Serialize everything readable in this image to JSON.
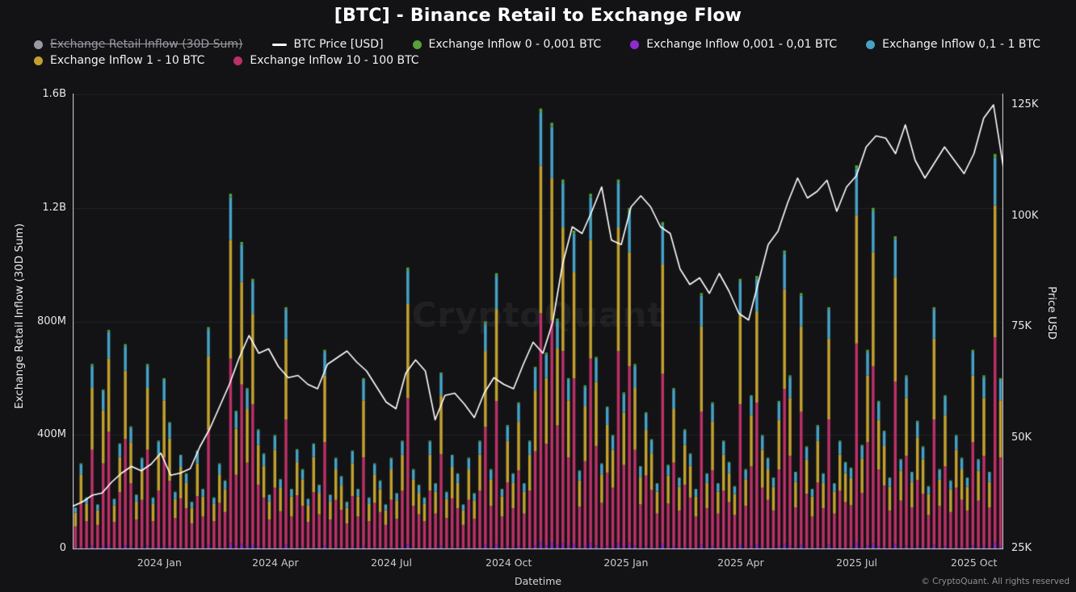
{
  "title": "[BTC] - Binance Retail to Exchange Flow",
  "watermark": "CryptoQuant",
  "footer": "© CryptoQuant. All rights reserved",
  "legend": {
    "rows": [
      [
        {
          "label": "Exchange Retail Inflow (30D Sum)",
          "color": "#9a9aa2",
          "marker": "dot",
          "disabled": true
        },
        {
          "label": "BTC Price [USD]",
          "color": "#ffffff",
          "marker": "line",
          "disabled": false
        },
        {
          "label": "Exchange Inflow 0 - 0,001 BTC",
          "color": "#55a23c",
          "marker": "dot",
          "disabled": false
        },
        {
          "label": "Exchange Inflow 0,001 - 0,01 BTC",
          "color": "#8e2bd0",
          "marker": "dot",
          "disabled": false
        },
        {
          "label": "Exchange Inflow 0,1 - 1 BTC",
          "color": "#46a2c6",
          "marker": "dot",
          "disabled": false
        }
      ],
      [
        {
          "label": "Exchange Inflow 1 - 10 BTC",
          "color": "#c1a02f",
          "marker": "dot",
          "disabled": false
        },
        {
          "label": "Exchange Inflow 10 - 100 BTC",
          "color": "#bb3066",
          "marker": "dot",
          "disabled": false
        }
      ]
    ]
  },
  "chart_data": {
    "type": "stacked-bar+line",
    "title": "[BTC] - Binance Retail to Exchange Flow",
    "xlabel": "Datetime",
    "ylabel_left": "Exchange Retail Inflow (30D Sum)",
    "ylabel_right": "Price USD",
    "grid": "faint-horizontal",
    "legend_position": "top-left",
    "x_ticks": [
      {
        "label": "2024 Jan",
        "f": 0.0932
      },
      {
        "label": "2024 Apr",
        "f": 0.2178
      },
      {
        "label": "2024 Jul",
        "f": 0.3425
      },
      {
        "label": "2024 Oct",
        "f": 0.4685
      },
      {
        "label": "2025 Jan",
        "f": 0.5945
      },
      {
        "label": "2025 Apr",
        "f": 0.7178
      },
      {
        "label": "2025 Jul",
        "f": 0.8425
      },
      {
        "label": "2025 Oct",
        "f": 0.9685
      }
    ],
    "left_axis": {
      "unit": "USD",
      "range_musd": [
        0,
        1600
      ],
      "ticks": [
        {
          "label": "0",
          "v": 0
        },
        {
          "label": "400M",
          "v": 400
        },
        {
          "label": "800M",
          "v": 800
        },
        {
          "label": "1.2B",
          "v": 1200
        },
        {
          "label": "1.6B",
          "v": 1600
        }
      ]
    },
    "right_axis": {
      "unit": "USD",
      "range_kusd": [
        25,
        125
      ],
      "ticks": [
        {
          "label": "25K",
          "v": 25
        },
        {
          "label": "50K",
          "v": 50
        },
        {
          "label": "75K",
          "v": 75
        },
        {
          "label": "100K",
          "v": 100
        },
        {
          "label": "125K",
          "v": 125
        }
      ]
    },
    "disabled_series": [
      "Exchange Retail Inflow (30D Sum)"
    ],
    "bars": {
      "unit": "USD millions (approximate, downsampled daily totals Oct 2023 - Oct 2025)",
      "stack": [
        {
          "name": "Exchange Inflow 0,001 - 0,01 BTC",
          "color": "#8d27b8",
          "fraction": 0.015
        },
        {
          "name": "Exchange Inflow 10 - 100 BTC",
          "color": "#bb3066",
          "fraction": 0.52
        },
        {
          "name": "Exchange Inflow 1 - 10 BTC",
          "color": "#c1a02f",
          "fraction": 0.335
        },
        {
          "name": "Exchange Inflow 0,1 - 1 BTC",
          "color": "#46a2c6",
          "fraction": 0.12
        },
        {
          "name": "Exchange Inflow 0 - 0,001 BTC",
          "color": "#55a23c",
          "fraction": 0.01
        }
      ],
      "totals_musd": [
        145,
        300,
        180,
        650,
        155,
        560,
        770,
        175,
        370,
        720,
        430,
        190,
        320,
        650,
        180,
        380,
        600,
        445,
        200,
        330,
        265,
        165,
        345,
        210,
        780,
        180,
        300,
        240,
        1250,
        485,
        1080,
        565,
        950,
        420,
        335,
        190,
        400,
        245,
        850,
        210,
        350,
        280,
        175,
        370,
        225,
        700,
        190,
        320,
        255,
        165,
        345,
        210,
        600,
        180,
        300,
        240,
        155,
        320,
        195,
        380,
        990,
        280,
        225,
        180,
        380,
        230,
        620,
        200,
        330,
        265,
        155,
        320,
        195,
        380,
        800,
        280,
        970,
        210,
        435,
        265,
        515,
        230,
        380,
        640,
        1550,
        690,
        1500,
        810,
        1300,
        600,
        1120,
        275,
        575,
        1250,
        675,
        300,
        500,
        400,
        1300,
        550,
        1200,
        650,
        290,
        480,
        385,
        230,
        1150,
        295,
        565,
        250,
        420,
        335,
        210,
        900,
        265,
        515,
        230,
        380,
        305,
        220,
        950,
        280,
        540,
        960,
        400,
        320,
        250,
        520,
        1050,
        610,
        270,
        900,
        360,
        210,
        435,
        265,
        850,
        230,
        380,
        305,
        285,
        1350,
        365,
        700,
        1200,
        520,
        415,
        250,
        1100,
        315,
        610,
        270,
        450,
        360,
        220,
        850,
        280,
        540,
        240,
        400,
        320,
        250,
        700,
        315,
        610,
        270,
        1390,
        600
      ]
    },
    "price_line": {
      "name": "BTC Price [USD]",
      "color": "#ffffff",
      "unit": "thousand USD (approximate weekly, Oct 2023 - Oct 2025)",
      "values_kusd": [
        34.5,
        35.5,
        37,
        37.5,
        40,
        42,
        43.5,
        42.5,
        44,
        46.5,
        41.5,
        42,
        43,
        48,
        52,
        57,
        62,
        68,
        73,
        69,
        70,
        66,
        63.5,
        64,
        62,
        61,
        66.5,
        68,
        69.5,
        67,
        65,
        61.5,
        58,
        56.5,
        64.5,
        67.5,
        65,
        54,
        59.5,
        60,
        57.5,
        54.5,
        60,
        63.5,
        62,
        61,
        66.5,
        71.5,
        69,
        76,
        89,
        97.5,
        96,
        101,
        106.5,
        94.5,
        93.5,
        102,
        104.5,
        102,
        97.5,
        96,
        88,
        84.5,
        86,
        82.5,
        87,
        83,
        78,
        76.5,
        85,
        93.5,
        96.5,
        103,
        108.5,
        104,
        105.5,
        108,
        101,
        106.5,
        109,
        115.5,
        118,
        117.5,
        114,
        120.5,
        112.5,
        108.5,
        112,
        115.5,
        112.5,
        109.5,
        114,
        122,
        125,
        111
      ]
    }
  }
}
